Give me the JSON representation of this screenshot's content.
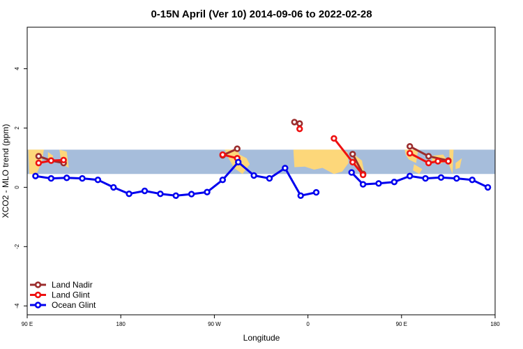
{
  "chart_data": {
    "type": "line",
    "title": "0-15N April (Ver 10)   2014-09-06 to 2022-02-28",
    "xlabel": "Longitude",
    "ylabel": "XCO2 - MLO trend (ppm)",
    "xlim": [
      90,
      540
    ],
    "ylim": [
      -4.3,
      5.4
    ],
    "x_ticks": [
      {
        "value": 90,
        "label": "90 E"
      },
      {
        "value": 180,
        "label": "180"
      },
      {
        "value": 270,
        "label": "90 W"
      },
      {
        "value": 360,
        "label": "0"
      },
      {
        "value": 450,
        "label": "90 E"
      },
      {
        "value": 540,
        "label": "180"
      }
    ],
    "y_ticks": [
      -4,
      -2,
      0,
      2,
      4
    ],
    "band": {
      "y_range": [
        0.45,
        1.27
      ],
      "ocean_color": "#a6bddb",
      "land_color": "#fdd77a"
    },
    "legend_position": "bottom-left",
    "series": [
      {
        "name": "Land Nadir",
        "color": "#9b2d2d",
        "segments": [
          [
            [
              101,
              1.05
            ],
            [
              113,
              0.9
            ],
            [
              125,
              0.82
            ]
          ],
          [
            [
              278,
              1.08
            ],
            [
              292,
              1.3
            ]
          ],
          [
            [
              347,
              2.2
            ],
            [
              352,
              2.15
            ]
          ],
          [
            [
              403,
              1.12
            ],
            [
              413,
              0.45
            ]
          ],
          [
            [
              458,
              1.38
            ],
            [
              476,
              1.05
            ],
            [
              495,
              0.9
            ]
          ]
        ]
      },
      {
        "name": "Land Glint",
        "color": "#ee1111",
        "segments": [
          [
            [
              101,
              0.82
            ],
            [
              113,
              0.9
            ],
            [
              125,
              0.92
            ]
          ],
          [
            [
              278,
              1.1
            ],
            [
              292,
              0.98
            ]
          ],
          [
            [
              352,
              1.97
            ]
          ],
          [
            [
              385,
              1.65
            ],
            [
              403,
              0.85
            ],
            [
              413,
              0.42
            ]
          ],
          [
            [
              458,
              1.15
            ],
            [
              476,
              0.82
            ],
            [
              485,
              0.88
            ],
            [
              495,
              0.88
            ]
          ]
        ]
      },
      {
        "name": "Ocean Glint",
        "color": "#0000ee",
        "segments": [
          [
            [
              98,
              0.38
            ],
            [
              113,
              0.3
            ],
            [
              128,
              0.32
            ],
            [
              143,
              0.3
            ],
            [
              158,
              0.25
            ],
            [
              173,
              0.0
            ],
            [
              188,
              -0.22
            ],
            [
              203,
              -0.12
            ],
            [
              218,
              -0.22
            ],
            [
              233,
              -0.28
            ],
            [
              248,
              -0.23
            ],
            [
              263,
              -0.16
            ],
            [
              278,
              0.25
            ],
            [
              293,
              0.85
            ],
            [
              308,
              0.4
            ],
            [
              323,
              0.3
            ],
            [
              338,
              0.65
            ],
            [
              353,
              -0.28
            ],
            [
              368,
              -0.17
            ]
          ],
          [
            [
              402,
              0.5
            ],
            [
              413,
              0.1
            ],
            [
              428,
              0.13
            ],
            [
              443,
              0.18
            ],
            [
              458,
              0.38
            ],
            [
              473,
              0.3
            ],
            [
              488,
              0.33
            ],
            [
              503,
              0.3
            ],
            [
              518,
              0.25
            ],
            [
              533,
              0.0
            ]
          ]
        ]
      }
    ]
  }
}
